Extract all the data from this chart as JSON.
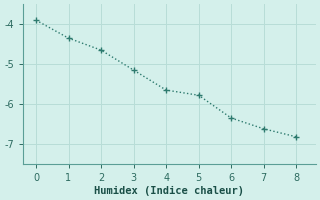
{
  "x": [
    0,
    1,
    2,
    3,
    4,
    5,
    6,
    7,
    8
  ],
  "y": [
    -3.9,
    -4.35,
    -4.65,
    -5.15,
    -5.65,
    -5.78,
    -6.35,
    -6.62,
    -6.82
  ],
  "line_color": "#2d7a6e",
  "marker": "+",
  "marker_size": 4,
  "marker_linewidth": 1.0,
  "xlabel": "Humidex (Indice chaleur)",
  "xlim": [
    -0.4,
    8.6
  ],
  "ylim": [
    -7.5,
    -3.5
  ],
  "yticks": [
    -7,
    -6,
    -5,
    -4
  ],
  "xticks": [
    0,
    1,
    2,
    3,
    4,
    5,
    6,
    7,
    8
  ],
  "bg_color": "#d4f0eb",
  "grid_color": "#b8ddd7",
  "axis_color": "#5a9e96",
  "tick_color": "#2d6b60",
  "xlabel_color": "#1a4f47",
  "line_width": 1.0,
  "font_size": 7,
  "xlabel_font_size": 7.5
}
